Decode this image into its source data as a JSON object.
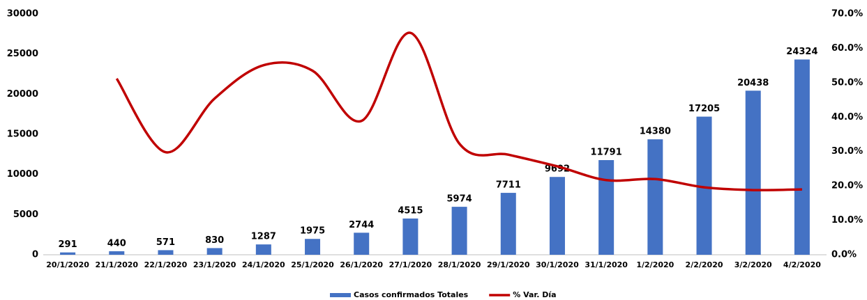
{
  "chart_data": {
    "type": "combo",
    "categories": [
      "20/1/2020",
      "21/1/2020",
      "22/1/2020",
      "23/1/2020",
      "24/1/2020",
      "25/1/2020",
      "26/1/2020",
      "27/1/2020",
      "28/1/2020",
      "29/1/2020",
      "30/1/2020",
      "31/1/2020",
      "1/2/2020",
      "2/2/2020",
      "3/2/2020",
      "4/2/2020"
    ],
    "series": [
      {
        "name": "Casos confirmados Totales",
        "type": "bar",
        "color": "#4472c4",
        "values": [
          291,
          440,
          571,
          830,
          1287,
          1975,
          2744,
          4515,
          5974,
          7711,
          9692,
          11791,
          14380,
          17205,
          20438,
          24324
        ]
      },
      {
        "name": "% Var. Día",
        "type": "line",
        "axis": "y2",
        "color": "#c00000",
        "values": [
          null,
          51.2,
          29.8,
          45.4,
          55.1,
          53.5,
          38.9,
          64.5,
          32.3,
          29.1,
          25.7,
          21.7,
          22.0,
          19.6,
          18.8,
          19.0
        ]
      }
    ],
    "ylim": [
      0,
      30000
    ],
    "yticks": [
      0,
      5000,
      10000,
      15000,
      20000,
      25000,
      30000
    ],
    "y2lim": [
      0,
      70
    ],
    "y2ticks": [
      {
        "value": 0,
        "label": "0.0%"
      },
      {
        "value": 10,
        "label": "10.0%"
      },
      {
        "value": 20,
        "label": "20.0%"
      },
      {
        "value": 30,
        "label": "30.0%"
      },
      {
        "value": 40,
        "label": "40.0%"
      },
      {
        "value": 50,
        "label": "50.0%"
      },
      {
        "value": 60,
        "label": "60.0%"
      },
      {
        "value": 70,
        "label": "70.0%"
      }
    ],
    "grid": false,
    "legend": "bottom"
  }
}
